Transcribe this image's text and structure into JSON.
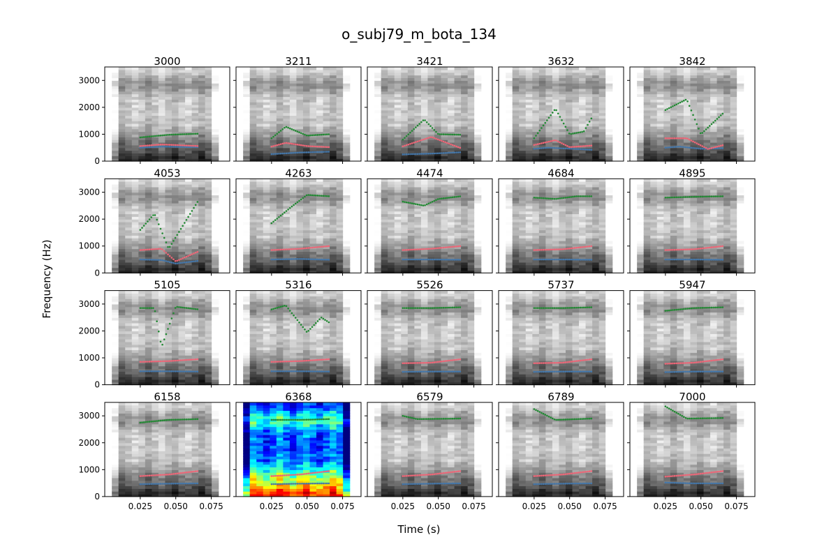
{
  "figure": {
    "title": "o_subj79_m_bota_134",
    "xlabel": "Time (s)",
    "ylabel": "Frequency (Hz)"
  },
  "chart_data": {
    "type": "scatter",
    "title": "o_subj79_m_bota_134",
    "xlabel": "Time (s)",
    "ylabel": "Frequency (Hz)",
    "xlim": [
      0.0,
      0.088
    ],
    "ylim": [
      0,
      3500
    ],
    "xticks": [
      0.025,
      0.05,
      0.075
    ],
    "xtick_labels": [
      "0.025",
      "0.050",
      "0.075"
    ],
    "yticks": [
      0,
      1000,
      2000,
      3000
    ],
    "ytick_labels": [
      "0",
      "1000",
      "2000",
      "3000"
    ],
    "series_styles": [
      {
        "name": "F1",
        "color": "#4477aa"
      },
      {
        "name": "F2",
        "color": "#ee6677"
      },
      {
        "name": "F3",
        "color": "#228833"
      }
    ],
    "spectrogram": {
      "x_start": 0.005,
      "x_end": 0.08,
      "highlight_colormap": "jet",
      "default_colormap": "gray"
    },
    "panels": [
      {
        "label": "3000",
        "highlighted": false,
        "f1": [
          [
            0.025,
            500
          ],
          [
            0.04,
            540
          ],
          [
            0.066,
            520
          ]
        ],
        "f2": [
          [
            0.025,
            560
          ],
          [
            0.04,
            620
          ],
          [
            0.066,
            560
          ]
        ],
        "f3": [
          [
            0.025,
            880
          ],
          [
            0.045,
            980
          ],
          [
            0.066,
            1020
          ]
        ]
      },
      {
        "label": "3211",
        "highlighted": false,
        "f1": [
          [
            0.025,
            260
          ],
          [
            0.045,
            320
          ],
          [
            0.066,
            350
          ]
        ],
        "f2": [
          [
            0.025,
            540
          ],
          [
            0.035,
            680
          ],
          [
            0.05,
            560
          ],
          [
            0.066,
            520
          ]
        ],
        "f3": [
          [
            0.025,
            850
          ],
          [
            0.035,
            1280
          ],
          [
            0.05,
            950
          ],
          [
            0.066,
            1000
          ]
        ]
      },
      {
        "label": "3421",
        "highlighted": false,
        "f1": [
          [
            0.025,
            250
          ],
          [
            0.045,
            280
          ],
          [
            0.066,
            330
          ]
        ],
        "f2": [
          [
            0.025,
            550
          ],
          [
            0.045,
            900
          ],
          [
            0.066,
            480
          ]
        ],
        "f3": [
          [
            0.025,
            800
          ],
          [
            0.04,
            1550
          ],
          [
            0.05,
            1000
          ],
          [
            0.066,
            980
          ]
        ]
      },
      {
        "label": "3632",
        "highlighted": false,
        "f1": [
          [
            0.025,
            460
          ],
          [
            0.035,
            500
          ],
          [
            0.055,
            450
          ],
          [
            0.066,
            420
          ]
        ],
        "f2": [
          [
            0.025,
            600
          ],
          [
            0.04,
            780
          ],
          [
            0.05,
            520
          ],
          [
            0.066,
            580
          ]
        ],
        "f3": [
          [
            0.025,
            850
          ],
          [
            0.04,
            1950
          ],
          [
            0.05,
            1000
          ],
          [
            0.06,
            1100
          ],
          [
            0.066,
            1650
          ]
        ]
      },
      {
        "label": "3842",
        "highlighted": false,
        "f1": [
          [
            0.025,
            500
          ],
          [
            0.035,
            540
          ],
          [
            0.05,
            460
          ],
          [
            0.066,
            480
          ]
        ],
        "f2": [
          [
            0.025,
            850
          ],
          [
            0.04,
            850
          ],
          [
            0.055,
            450
          ],
          [
            0.066,
            600
          ]
        ],
        "f3": [
          [
            0.025,
            1900
          ],
          [
            0.04,
            2300
          ],
          [
            0.05,
            1000
          ],
          [
            0.066,
            1800
          ]
        ]
      },
      {
        "label": "4053",
        "highlighted": false,
        "f1": [
          [
            0.025,
            500
          ],
          [
            0.04,
            480
          ],
          [
            0.05,
            350
          ],
          [
            0.066,
            450
          ]
        ],
        "f2": [
          [
            0.025,
            850
          ],
          [
            0.04,
            900
          ],
          [
            0.05,
            430
          ],
          [
            0.066,
            800
          ]
        ],
        "f3": [
          [
            0.025,
            1600
          ],
          [
            0.035,
            2200
          ],
          [
            0.045,
            900
          ],
          [
            0.066,
            2700
          ]
        ]
      },
      {
        "label": "4263",
        "highlighted": false,
        "f1": [
          [
            0.025,
            500
          ],
          [
            0.045,
            520
          ],
          [
            0.066,
            490
          ]
        ],
        "f2": [
          [
            0.025,
            850
          ],
          [
            0.045,
            900
          ],
          [
            0.066,
            1000
          ]
        ],
        "f3": [
          [
            0.025,
            1850
          ],
          [
            0.04,
            2500
          ],
          [
            0.05,
            2900
          ],
          [
            0.066,
            2850
          ]
        ]
      },
      {
        "label": "4474",
        "highlighted": false,
        "f1": [
          [
            0.025,
            500
          ],
          [
            0.045,
            500
          ],
          [
            0.066,
            490
          ]
        ],
        "f2": [
          [
            0.025,
            850
          ],
          [
            0.045,
            900
          ],
          [
            0.066,
            1000
          ]
        ],
        "f3": [
          [
            0.025,
            2650
          ],
          [
            0.04,
            2500
          ],
          [
            0.05,
            2750
          ],
          [
            0.066,
            2850
          ]
        ]
      },
      {
        "label": "4684",
        "highlighted": false,
        "f1": [
          [
            0.025,
            500
          ],
          [
            0.045,
            500
          ],
          [
            0.066,
            490
          ]
        ],
        "f2": [
          [
            0.025,
            850
          ],
          [
            0.045,
            880
          ],
          [
            0.066,
            1000
          ]
        ],
        "f3": [
          [
            0.025,
            2800
          ],
          [
            0.04,
            2750
          ],
          [
            0.055,
            2850
          ],
          [
            0.066,
            2850
          ]
        ]
      },
      {
        "label": "4895",
        "highlighted": false,
        "f1": [
          [
            0.025,
            500
          ],
          [
            0.045,
            500
          ],
          [
            0.066,
            490
          ]
        ],
        "f2": [
          [
            0.025,
            850
          ],
          [
            0.045,
            880
          ],
          [
            0.066,
            1000
          ]
        ],
        "f3": [
          [
            0.025,
            2800
          ],
          [
            0.045,
            2830
          ],
          [
            0.066,
            2850
          ]
        ]
      },
      {
        "label": "5105",
        "highlighted": false,
        "f1": [
          [
            0.025,
            500
          ],
          [
            0.045,
            500
          ],
          [
            0.066,
            490
          ]
        ],
        "f2": [
          [
            0.025,
            850
          ],
          [
            0.045,
            880
          ],
          [
            0.066,
            950
          ]
        ],
        "f3": [
          [
            0.025,
            2850
          ],
          [
            0.035,
            2850
          ],
          [
            0.04,
            1400
          ],
          [
            0.05,
            2900
          ],
          [
            0.066,
            2800
          ]
        ]
      },
      {
        "label": "5316",
        "highlighted": false,
        "f1": [
          [
            0.025,
            500
          ],
          [
            0.045,
            500
          ],
          [
            0.066,
            490
          ]
        ],
        "f2": [
          [
            0.025,
            850
          ],
          [
            0.045,
            880
          ],
          [
            0.066,
            950
          ]
        ],
        "f3": [
          [
            0.025,
            2800
          ],
          [
            0.035,
            2950
          ],
          [
            0.05,
            1950
          ],
          [
            0.06,
            2500
          ],
          [
            0.066,
            2300
          ]
        ]
      },
      {
        "label": "5526",
        "highlighted": false,
        "f1": [
          [
            0.025,
            480
          ],
          [
            0.045,
            490
          ],
          [
            0.066,
            490
          ]
        ],
        "f2": [
          [
            0.025,
            800
          ],
          [
            0.045,
            820
          ],
          [
            0.066,
            950
          ]
        ],
        "f3": [
          [
            0.025,
            2850
          ],
          [
            0.045,
            2850
          ],
          [
            0.066,
            2880
          ]
        ]
      },
      {
        "label": "5737",
        "highlighted": false,
        "f1": [
          [
            0.025,
            480
          ],
          [
            0.045,
            490
          ],
          [
            0.066,
            490
          ]
        ],
        "f2": [
          [
            0.025,
            800
          ],
          [
            0.045,
            820
          ],
          [
            0.066,
            950
          ]
        ],
        "f3": [
          [
            0.025,
            2850
          ],
          [
            0.045,
            2850
          ],
          [
            0.066,
            2880
          ]
        ]
      },
      {
        "label": "5947",
        "highlighted": false,
        "f1": [
          [
            0.025,
            470
          ],
          [
            0.045,
            490
          ],
          [
            0.066,
            490
          ]
        ],
        "f2": [
          [
            0.025,
            780
          ],
          [
            0.045,
            820
          ],
          [
            0.066,
            950
          ]
        ],
        "f3": [
          [
            0.025,
            2750
          ],
          [
            0.045,
            2850
          ],
          [
            0.066,
            2880
          ]
        ]
      },
      {
        "label": "6158",
        "highlighted": false,
        "f1": [
          [
            0.025,
            460
          ],
          [
            0.045,
            480
          ],
          [
            0.066,
            490
          ]
        ],
        "f2": [
          [
            0.025,
            760
          ],
          [
            0.045,
            820
          ],
          [
            0.066,
            950
          ]
        ],
        "f3": [
          [
            0.025,
            2750
          ],
          [
            0.045,
            2850
          ],
          [
            0.066,
            2880
          ]
        ]
      },
      {
        "label": "6368",
        "highlighted": true,
        "f1": [
          [
            0.025,
            460
          ],
          [
            0.045,
            480
          ],
          [
            0.066,
            490
          ]
        ],
        "f2": [
          [
            0.025,
            760
          ],
          [
            0.045,
            820
          ],
          [
            0.066,
            950
          ]
        ],
        "f3": [
          [
            0.025,
            2850
          ],
          [
            0.045,
            2850
          ],
          [
            0.066,
            2880
          ]
        ]
      },
      {
        "label": "6579",
        "highlighted": false,
        "f1": [
          [
            0.025,
            460
          ],
          [
            0.045,
            480
          ],
          [
            0.066,
            490
          ]
        ],
        "f2": [
          [
            0.025,
            760
          ],
          [
            0.045,
            820
          ],
          [
            0.066,
            950
          ]
        ],
        "f3": [
          [
            0.025,
            3000
          ],
          [
            0.035,
            2880
          ],
          [
            0.066,
            2900
          ]
        ]
      },
      {
        "label": "6789",
        "highlighted": false,
        "f1": [
          [
            0.025,
            460
          ],
          [
            0.045,
            480
          ],
          [
            0.066,
            490
          ]
        ],
        "f2": [
          [
            0.025,
            760
          ],
          [
            0.045,
            820
          ],
          [
            0.066,
            950
          ]
        ],
        "f3": [
          [
            0.025,
            3250
          ],
          [
            0.04,
            2850
          ],
          [
            0.066,
            2900
          ]
        ]
      },
      {
        "label": "7000",
        "highlighted": false,
        "f1": [
          [
            0.025,
            520
          ],
          [
            0.045,
            490
          ],
          [
            0.066,
            490
          ]
        ],
        "f2": [
          [
            0.025,
            740
          ],
          [
            0.045,
            820
          ],
          [
            0.066,
            950
          ]
        ],
        "f3": [
          [
            0.025,
            3350
          ],
          [
            0.04,
            2900
          ],
          [
            0.066,
            2920
          ]
        ]
      }
    ]
  }
}
